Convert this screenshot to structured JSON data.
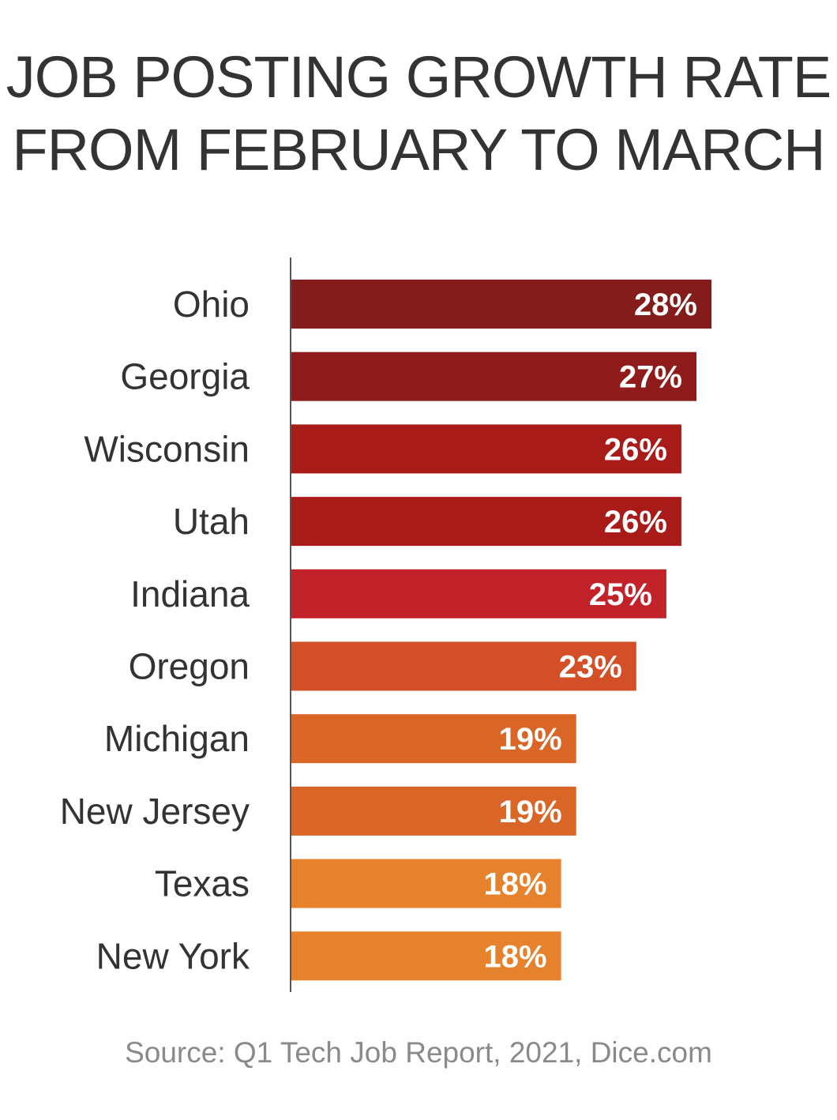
{
  "chart_data": {
    "type": "bar",
    "orientation": "horizontal",
    "title_lines": [
      "JOB POSTING GROWTH RATE",
      "FROM FEBRUARY TO MARCH"
    ],
    "categories": [
      "Ohio",
      "Georgia",
      "Wisconsin",
      "Utah",
      "Indiana",
      "Oregon",
      "Michigan",
      "New Jersey",
      "Texas",
      "New York"
    ],
    "values": [
      28,
      27,
      26,
      26,
      25,
      23,
      19,
      19,
      18,
      18
    ],
    "value_labels": [
      "28%",
      "27%",
      "26%",
      "26%",
      "25%",
      "23%",
      "19%",
      "19%",
      "18%",
      "18%"
    ],
    "colors": [
      "#841c1c",
      "#8f1c1a",
      "#a81b18",
      "#a81b18",
      "#c2232a",
      "#d34f27",
      "#d96626",
      "#d96626",
      "#e5822b",
      "#e5822b"
    ],
    "xlim": [
      0,
      28
    ],
    "grid": false,
    "legend": "none",
    "source": "Source: Q1 Tech Job Report, 2021, Dice.com"
  }
}
